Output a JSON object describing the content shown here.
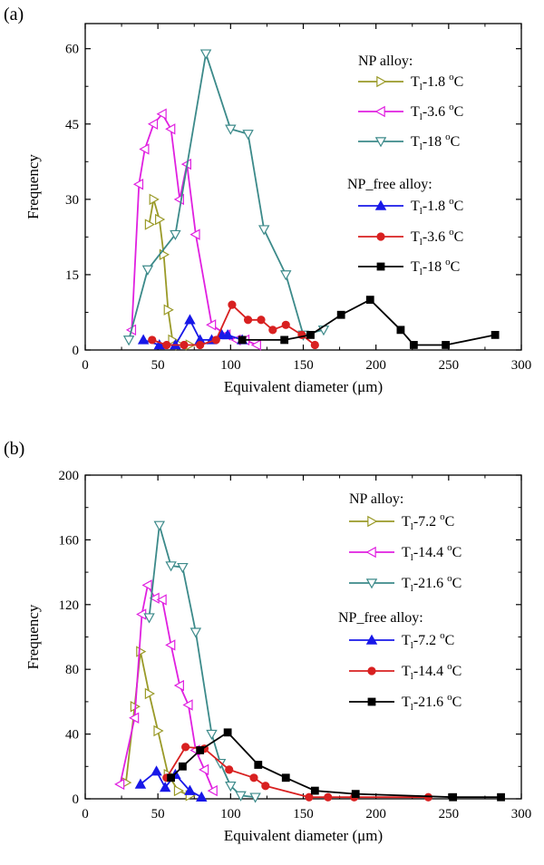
{
  "chart_data": [
    {
      "type": "line",
      "panel_label": "(a)",
      "xlabel": "Equivalent diameter (μm)",
      "ylabel": "Frequency",
      "xlim": [
        0,
        300
      ],
      "ylim": [
        0,
        65
      ],
      "xticks": [
        0,
        50,
        100,
        150,
        200,
        250,
        300
      ],
      "yticks": [
        0,
        15,
        30,
        45,
        60
      ],
      "legend_groups": [
        {
          "heading": "NP alloy:",
          "series_indices": [
            0,
            1,
            2
          ]
        },
        {
          "heading": "NP_free alloy:",
          "series_indices": [
            3,
            4,
            5
          ]
        }
      ],
      "series": [
        {
          "label_main": "T",
          "label_sub": "l",
          "label_rest": "-1.8 ",
          "label_sup": "o",
          "label_unit": "C",
          "color": "#9a9a28",
          "marker": "triangle-right",
          "x": [
            44,
            47,
            51,
            54,
            57,
            60,
            65,
            72
          ],
          "y": [
            25,
            30,
            26,
            19,
            8,
            2,
            1,
            1
          ]
        },
        {
          "label_main": "T",
          "label_sub": "l",
          "label_rest": "-3.6 ",
          "label_sup": "o",
          "label_unit": "C",
          "color": "#e020e0",
          "marker": "triangle-left",
          "x": [
            32,
            37,
            41,
            47,
            53,
            59,
            65,
            70,
            76,
            87,
            97,
            104,
            110,
            118
          ],
          "y": [
            4,
            33,
            40,
            45,
            47,
            44,
            30,
            37,
            23,
            5,
            3,
            2,
            2,
            1
          ]
        },
        {
          "label_main": "T",
          "label_sub": "l",
          "label_rest": "-18 ",
          "label_sup": "o",
          "label_unit": "C",
          "color": "#3c8a8a",
          "marker": "triangle-down",
          "x": [
            30,
            43,
            62,
            83,
            100,
            112,
            123,
            138,
            150,
            164
          ],
          "y": [
            2,
            16,
            23,
            59,
            44,
            43,
            24,
            15,
            3,
            4
          ]
        },
        {
          "label_main": "T",
          "label_sub": "l",
          "label_rest": "-1.8 ",
          "label_sup": "o",
          "label_unit": "C",
          "color": "#1818e8",
          "marker": "triangle-up",
          "x": [
            40,
            51,
            62,
            72,
            79,
            87,
            94,
            98,
            108
          ],
          "y": [
            2,
            1,
            1,
            6,
            2,
            2,
            3,
            3,
            2
          ]
        },
        {
          "label_main": "T",
          "label_sub": "l",
          "label_rest": "-3.6 ",
          "label_sup": "o",
          "label_unit": "C",
          "color": "#d82020",
          "marker": "circle",
          "x": [
            46,
            56,
            68,
            79,
            90,
            101,
            112,
            121,
            129,
            138,
            149,
            158
          ],
          "y": [
            2,
            1,
            1,
            1,
            2,
            9,
            6,
            6,
            4,
            5,
            3,
            1
          ]
        },
        {
          "label_main": "T",
          "label_sub": "l",
          "label_rest": "-18 ",
          "label_sup": "o",
          "label_unit": "C",
          "color": "#000000",
          "marker": "square",
          "x": [
            108,
            137,
            155,
            176,
            196,
            217,
            226,
            248,
            282
          ],
          "y": [
            2,
            2,
            3,
            7,
            10,
            4,
            1,
            1,
            3
          ]
        }
      ]
    },
    {
      "type": "line",
      "panel_label": "(b)",
      "xlabel": "Equivalent diameter (μm)",
      "ylabel": "Frequency",
      "xlim": [
        0,
        300
      ],
      "ylim": [
        0,
        200
      ],
      "xticks": [
        0,
        50,
        100,
        150,
        200,
        250,
        300
      ],
      "yticks": [
        0,
        40,
        80,
        120,
        160,
        200
      ],
      "legend_groups": [
        {
          "heading": "NP alloy:",
          "series_indices": [
            0,
            1,
            2
          ]
        },
        {
          "heading": "NP_free alloy:",
          "series_indices": [
            3,
            4,
            5
          ]
        }
      ],
      "series": [
        {
          "label_main": "T",
          "label_sub": "l",
          "label_rest": "-7.2 ",
          "label_sup": "o",
          "label_unit": "C",
          "color": "#9a9a28",
          "marker": "triangle-right",
          "x": [
            28,
            34,
            38,
            44,
            50,
            57,
            64,
            72
          ],
          "y": [
            10,
            57,
            91,
            65,
            42,
            15,
            5,
            2
          ]
        },
        {
          "label_main": "T",
          "label_sub": "l",
          "label_rest": "-14.4 ",
          "label_sup": "o",
          "label_unit": "C",
          "color": "#e020e0",
          "marker": "triangle-left",
          "x": [
            24,
            34,
            39,
            43,
            48,
            53,
            59,
            65,
            71,
            76,
            82,
            88
          ],
          "y": [
            9,
            50,
            114,
            132,
            124,
            123,
            95,
            70,
            58,
            30,
            18,
            5
          ]
        },
        {
          "label_main": "T",
          "label_sub": "l",
          "label_rest": "-21.6 ",
          "label_sup": "o",
          "label_unit": "C",
          "color": "#3c8a8a",
          "marker": "triangle-down",
          "x": [
            44,
            51,
            59,
            67,
            76,
            87,
            93,
            100,
            107,
            117
          ],
          "y": [
            112,
            169,
            144,
            143,
            103,
            40,
            22,
            8,
            2,
            1
          ]
        },
        {
          "label_main": "T",
          "label_sub": "l",
          "label_rest": "-7.2 ",
          "label_sup": "o",
          "label_unit": "C",
          "color": "#1818e8",
          "marker": "triangle-up",
          "x": [
            38,
            49,
            55,
            62,
            72,
            80
          ],
          "y": [
            9,
            17,
            7,
            15,
            5,
            1
          ]
        },
        {
          "label_main": "T",
          "label_sub": "l",
          "label_rest": "-14.4 ",
          "label_sup": "o",
          "label_unit": "C",
          "color": "#d82020",
          "marker": "circle",
          "x": [
            56,
            69,
            82,
            99,
            116,
            124,
            154,
            167,
            185,
            236
          ],
          "y": [
            13,
            32,
            31,
            18,
            13,
            8,
            1,
            1,
            1,
            1
          ]
        },
        {
          "label_main": "T",
          "label_sub": "l",
          "label_rest": "-21.6 ",
          "label_sup": "o",
          "label_unit": "C",
          "color": "#000000",
          "marker": "square",
          "x": [
            59,
            67,
            79,
            98,
            119,
            138,
            158,
            186,
            253,
            286
          ],
          "y": [
            13,
            20,
            30,
            41,
            21,
            13,
            5,
            3,
            1,
            1
          ]
        }
      ]
    }
  ]
}
